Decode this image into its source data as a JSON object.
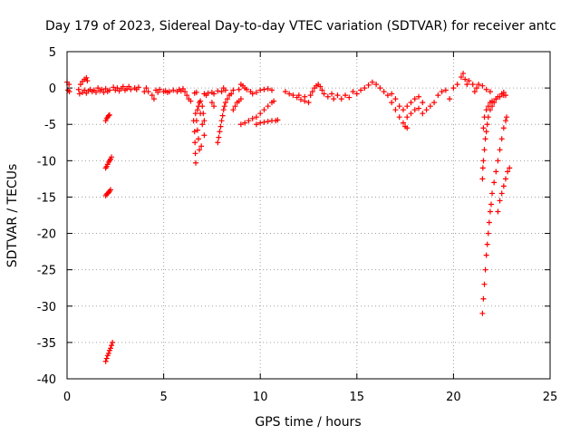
{
  "chart_data": {
    "type": "scatter",
    "title": "Day 179 of 2023, Sidereal Day-to-day VTEC variation (SDTVAR) for receiver antc",
    "xlabel": "GPS time / hours",
    "ylabel": "SDTVAR / TECUs",
    "xlim": [
      0,
      25
    ],
    "ylim": [
      -40,
      5
    ],
    "xticks": [
      0,
      5,
      10,
      15,
      20,
      25
    ],
    "yticks": [
      5,
      0,
      -5,
      -10,
      -15,
      -20,
      -25,
      -30,
      -35,
      -40
    ],
    "grid": true,
    "marker": "+",
    "color": "#ff0000",
    "series": [
      {
        "name": "receiver antc",
        "points": [
          [
            0.0,
            0.8
          ],
          [
            0.05,
            -0.3
          ],
          [
            0.1,
            0.5
          ],
          [
            0.12,
            -0.5
          ],
          [
            0.6,
            -0.2
          ],
          [
            0.7,
            0.5
          ],
          [
            0.8,
            0.9
          ],
          [
            0.9,
            1.2
          ],
          [
            1.0,
            1.4
          ],
          [
            1.05,
            1.0
          ],
          [
            0.65,
            -0.8
          ],
          [
            0.8,
            -0.6
          ],
          [
            0.9,
            -0.3
          ],
          [
            1.0,
            -0.7
          ],
          [
            1.1,
            -0.4
          ],
          [
            1.2,
            -0.2
          ],
          [
            1.3,
            -0.5
          ],
          [
            1.4,
            -0.3
          ],
          [
            1.5,
            -0.6
          ],
          [
            1.6,
            0.0
          ],
          [
            1.7,
            -0.4
          ],
          [
            1.8,
            -0.2
          ],
          [
            1.9,
            -0.6
          ],
          [
            2.0,
            -0.1
          ],
          [
            2.1,
            -0.5
          ],
          [
            2.2,
            -0.3
          ],
          [
            2.0,
            -4.5
          ],
          [
            2.05,
            -4.2
          ],
          [
            2.1,
            -4.0
          ],
          [
            2.15,
            -3.8
          ],
          [
            2.2,
            -3.7
          ],
          [
            2.0,
            -11.0
          ],
          [
            2.05,
            -10.8
          ],
          [
            2.1,
            -10.5
          ],
          [
            2.15,
            -10.2
          ],
          [
            2.2,
            -10.0
          ],
          [
            2.25,
            -9.8
          ],
          [
            2.3,
            -9.5
          ],
          [
            2.0,
            -14.8
          ],
          [
            2.05,
            -14.6
          ],
          [
            2.1,
            -14.5
          ],
          [
            2.15,
            -14.4
          ],
          [
            2.2,
            -14.2
          ],
          [
            2.25,
            -14.0
          ],
          [
            2.0,
            -37.6
          ],
          [
            2.05,
            -37.2
          ],
          [
            2.1,
            -36.8
          ],
          [
            2.15,
            -36.5
          ],
          [
            2.2,
            -36.1
          ],
          [
            2.25,
            -35.8
          ],
          [
            2.3,
            -35.4
          ],
          [
            2.35,
            -35.0
          ],
          [
            2.4,
            0.1
          ],
          [
            2.5,
            -0.3
          ],
          [
            2.6,
            0.0
          ],
          [
            2.7,
            -0.4
          ],
          [
            2.8,
            -0.1
          ],
          [
            2.9,
            0.2
          ],
          [
            3.0,
            -0.3
          ],
          [
            3.1,
            -0.1
          ],
          [
            3.2,
            0.2
          ],
          [
            3.3,
            -0.2
          ],
          [
            3.5,
            0.0
          ],
          [
            3.6,
            -0.2
          ],
          [
            3.7,
            0.1
          ],
          [
            4.0,
            -0.5
          ],
          [
            4.1,
            0.0
          ],
          [
            4.2,
            -0.5
          ],
          [
            4.4,
            -1.0
          ],
          [
            4.5,
            -1.5
          ],
          [
            4.6,
            -0.3
          ],
          [
            4.7,
            -0.6
          ],
          [
            4.8,
            -0.2
          ],
          [
            5.0,
            -0.5
          ],
          [
            5.1,
            -0.4
          ],
          [
            5.2,
            -0.6
          ],
          [
            5.3,
            -0.5
          ],
          [
            5.5,
            -0.3
          ],
          [
            5.7,
            -0.5
          ],
          [
            5.8,
            -0.2
          ],
          [
            5.9,
            -0.4
          ],
          [
            6.0,
            -0.1
          ],
          [
            6.1,
            -0.5
          ],
          [
            6.2,
            -1.0
          ],
          [
            6.3,
            -1.5
          ],
          [
            6.4,
            -1.8
          ],
          [
            6.55,
            -4.5
          ],
          [
            6.6,
            -6.0
          ],
          [
            6.62,
            -7.5
          ],
          [
            6.64,
            -9.0
          ],
          [
            6.66,
            -10.3
          ],
          [
            6.65,
            -3.5
          ],
          [
            6.7,
            -4.5
          ],
          [
            6.75,
            -5.8
          ],
          [
            6.8,
            -7.0
          ],
          [
            6.85,
            -8.5
          ],
          [
            6.75,
            -3.0
          ],
          [
            6.8,
            -2.5
          ],
          [
            6.85,
            -2.0
          ],
          [
            6.9,
            -1.8
          ],
          [
            7.0,
            -2.5
          ],
          [
            7.05,
            -3.5
          ],
          [
            7.1,
            -4.5
          ],
          [
            6.9,
            -3.5
          ],
          [
            7.0,
            -5.0
          ],
          [
            7.1,
            -6.5
          ],
          [
            6.95,
            -8.0
          ],
          [
            6.6,
            -0.7
          ],
          [
            6.7,
            -0.6
          ],
          [
            7.1,
            -0.8
          ],
          [
            7.2,
            -1.0
          ],
          [
            7.3,
            -0.7
          ],
          [
            7.5,
            -0.6
          ],
          [
            7.6,
            -0.8
          ],
          [
            7.8,
            -0.4
          ],
          [
            7.5,
            -2.0
          ],
          [
            7.6,
            -2.5
          ],
          [
            7.8,
            -7.5
          ],
          [
            7.85,
            -6.8
          ],
          [
            7.9,
            -6.0
          ],
          [
            7.95,
            -5.3
          ],
          [
            8.0,
            -4.5
          ],
          [
            8.05,
            -3.8
          ],
          [
            8.1,
            -3.0
          ],
          [
            8.15,
            -2.5
          ],
          [
            8.2,
            -2.0
          ],
          [
            8.3,
            -1.5
          ],
          [
            8.4,
            -1.0
          ],
          [
            8.5,
            -0.8
          ],
          [
            8.6,
            -0.3
          ],
          [
            8.0,
            -0.5
          ],
          [
            8.1,
            0.0
          ],
          [
            8.2,
            -0.3
          ],
          [
            8.6,
            -3.0
          ],
          [
            8.7,
            -2.5
          ],
          [
            8.8,
            -2.0
          ],
          [
            8.9,
            -1.8
          ],
          [
            9.0,
            -1.5
          ],
          [
            8.9,
            -0.2
          ],
          [
            9.0,
            0.5
          ],
          [
            9.1,
            0.3
          ],
          [
            9.2,
            0.0
          ],
          [
            9.3,
            -0.2
          ],
          [
            9.5,
            -0.5
          ],
          [
            9.6,
            -0.8
          ],
          [
            9.8,
            -0.6
          ],
          [
            10.0,
            -0.3
          ],
          [
            10.2,
            -0.2
          ],
          [
            10.4,
            -0.1
          ],
          [
            10.6,
            -0.3
          ],
          [
            9.0,
            -5.0
          ],
          [
            9.2,
            -4.8
          ],
          [
            9.4,
            -4.5
          ],
          [
            9.6,
            -4.2
          ],
          [
            9.8,
            -4.0
          ],
          [
            10.0,
            -3.5
          ],
          [
            10.2,
            -3.0
          ],
          [
            10.4,
            -2.5
          ],
          [
            10.6,
            -2.0
          ],
          [
            10.7,
            -1.8
          ],
          [
            9.8,
            -5.0
          ],
          [
            10.0,
            -4.8
          ],
          [
            10.2,
            -4.7
          ],
          [
            10.4,
            -4.6
          ],
          [
            10.6,
            -4.5
          ],
          [
            10.8,
            -4.5
          ],
          [
            10.9,
            -4.4
          ],
          [
            11.3,
            -0.5
          ],
          [
            11.5,
            -0.8
          ],
          [
            11.7,
            -1.0
          ],
          [
            11.9,
            -1.3
          ],
          [
            12.1,
            -1.6
          ],
          [
            12.3,
            -1.8
          ],
          [
            12.5,
            -2.0
          ],
          [
            12.0,
            -1.0
          ],
          [
            12.3,
            -1.2
          ],
          [
            12.6,
            -1.0
          ],
          [
            12.7,
            -0.5
          ],
          [
            12.8,
            0.0
          ],
          [
            12.9,
            0.3
          ],
          [
            13.0,
            0.5
          ],
          [
            13.1,
            0.2
          ],
          [
            13.2,
            -0.3
          ],
          [
            13.3,
            -0.8
          ],
          [
            13.5,
            -1.2
          ],
          [
            13.7,
            -0.8
          ],
          [
            13.8,
            -1.5
          ],
          [
            14.0,
            -1.0
          ],
          [
            14.2,
            -1.5
          ],
          [
            14.4,
            -1.0
          ],
          [
            14.6,
            -1.3
          ],
          [
            14.8,
            -0.5
          ],
          [
            15.0,
            -0.8
          ],
          [
            15.2,
            -0.3
          ],
          [
            15.4,
            0.0
          ],
          [
            15.6,
            0.4
          ],
          [
            15.8,
            0.8
          ],
          [
            16.0,
            0.5
          ],
          [
            16.2,
            0.0
          ],
          [
            16.4,
            -0.5
          ],
          [
            16.6,
            -1.0
          ],
          [
            16.8,
            -2.0
          ],
          [
            17.0,
            -3.0
          ],
          [
            17.2,
            -4.0
          ],
          [
            17.4,
            -4.8
          ],
          [
            17.5,
            -5.3
          ],
          [
            17.6,
            -5.5
          ],
          [
            16.8,
            -0.8
          ],
          [
            17.0,
            -1.5
          ],
          [
            17.2,
            -2.5
          ],
          [
            17.4,
            -3.0
          ],
          [
            17.6,
            -2.5
          ],
          [
            17.8,
            -2.0
          ],
          [
            18.0,
            -1.5
          ],
          [
            18.2,
            -1.2
          ],
          [
            18.4,
            -2.0
          ],
          [
            18.6,
            -3.0
          ],
          [
            18.8,
            -2.5
          ],
          [
            19.0,
            -2.0
          ],
          [
            17.6,
            -4.0
          ],
          [
            17.8,
            -3.5
          ],
          [
            18.0,
            -3.0
          ],
          [
            18.2,
            -2.8
          ],
          [
            18.4,
            -3.5
          ],
          [
            19.2,
            -1.0
          ],
          [
            19.4,
            -0.5
          ],
          [
            19.6,
            -0.3
          ],
          [
            19.8,
            -1.5
          ],
          [
            20.0,
            0.0
          ],
          [
            20.2,
            0.5
          ],
          [
            20.4,
            1.5
          ],
          [
            20.5,
            2.0
          ],
          [
            20.6,
            1.2
          ],
          [
            20.7,
            0.5
          ],
          [
            20.8,
            1.0
          ],
          [
            21.0,
            0.5
          ],
          [
            21.1,
            -0.5
          ],
          [
            21.2,
            0.0
          ],
          [
            21.3,
            0.5
          ],
          [
            21.5,
            0.3
          ],
          [
            21.7,
            -0.2
          ],
          [
            21.9,
            -0.5
          ],
          [
            21.5,
            -12.5
          ],
          [
            21.52,
            -11.0
          ],
          [
            21.55,
            -10.0
          ],
          [
            21.6,
            -8.5
          ],
          [
            21.65,
            -7.0
          ],
          [
            21.7,
            -6.0
          ],
          [
            21.75,
            -5.0
          ],
          [
            21.8,
            -4.0
          ],
          [
            21.9,
            -3.0
          ],
          [
            22.0,
            -2.5
          ],
          [
            22.1,
            -2.0
          ],
          [
            22.2,
            -1.5
          ],
          [
            22.3,
            -1.2
          ],
          [
            22.5,
            -0.8
          ],
          [
            22.6,
            -0.6
          ],
          [
            21.55,
            -5.5
          ],
          [
            21.6,
            -4.0
          ],
          [
            21.7,
            -3.0
          ],
          [
            21.8,
            -2.5
          ],
          [
            21.9,
            -2.0
          ],
          [
            22.0,
            -1.8
          ],
          [
            22.2,
            -1.5
          ],
          [
            22.4,
            -1.2
          ],
          [
            22.6,
            -1.0
          ],
          [
            22.7,
            -1.0
          ],
          [
            21.5,
            -31.0
          ],
          [
            21.55,
            -29.0
          ],
          [
            21.6,
            -27.0
          ],
          [
            21.65,
            -25.0
          ],
          [
            21.7,
            -23.0
          ],
          [
            21.75,
            -21.5
          ],
          [
            21.8,
            -20.0
          ],
          [
            21.85,
            -18.5
          ],
          [
            21.9,
            -17.0
          ],
          [
            21.95,
            -16.0
          ],
          [
            22.0,
            -14.5
          ],
          [
            22.1,
            -13.0
          ],
          [
            22.2,
            -11.5
          ],
          [
            22.3,
            -10.0
          ],
          [
            22.4,
            -8.5
          ],
          [
            22.5,
            -7.0
          ],
          [
            22.6,
            -5.5
          ],
          [
            22.7,
            -4.5
          ],
          [
            22.75,
            -4.0
          ],
          [
            22.3,
            -17.0
          ],
          [
            22.4,
            -15.5
          ],
          [
            22.5,
            -14.5
          ],
          [
            22.6,
            -13.5
          ],
          [
            22.7,
            -12.5
          ],
          [
            22.8,
            -11.5
          ],
          [
            22.9,
            -11.0
          ]
        ]
      }
    ]
  }
}
